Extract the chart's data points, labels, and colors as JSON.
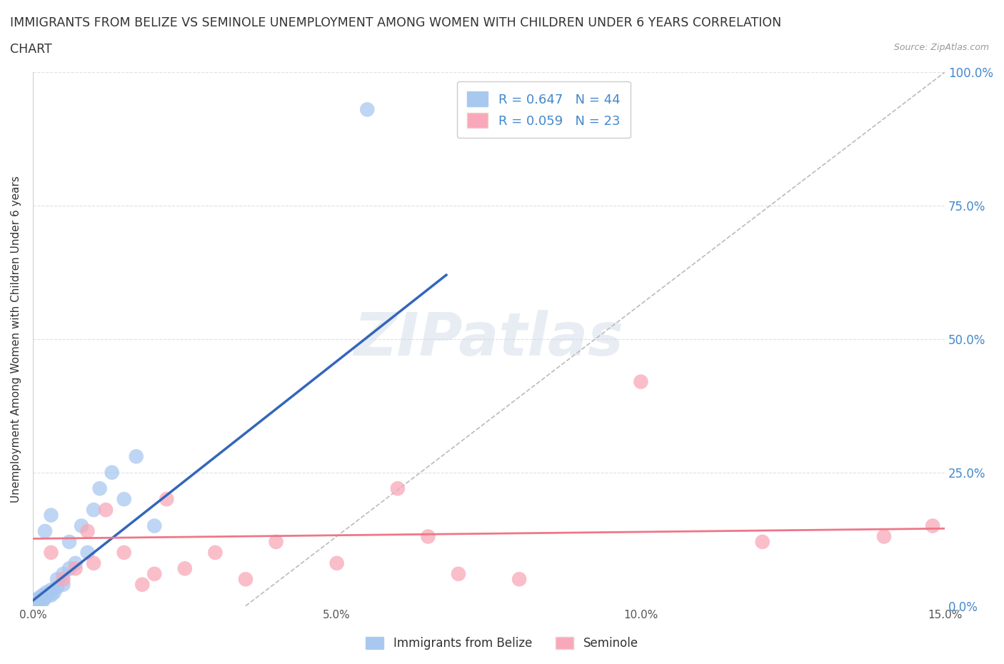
{
  "title_line1": "IMMIGRANTS FROM BELIZE VS SEMINOLE UNEMPLOYMENT AMONG WOMEN WITH CHILDREN UNDER 6 YEARS CORRELATION",
  "title_line2": "CHART",
  "source_text": "Source: ZipAtlas.com",
  "ylabel": "Unemployment Among Women with Children Under 6 years",
  "legend_bottom": [
    "Immigrants from Belize",
    "Seminole"
  ],
  "xlim": [
    0.0,
    0.15
  ],
  "ylim": [
    0.0,
    1.0
  ],
  "xticks": [
    0.0,
    0.05,
    0.1,
    0.15
  ],
  "xtick_labels": [
    "0.0%",
    "5.0%",
    "10.0%",
    "15.0%"
  ],
  "yticks": [
    0.0,
    0.25,
    0.5,
    0.75,
    1.0
  ],
  "ytick_labels": [
    "0.0%",
    "25.0%",
    "50.0%",
    "75.0%",
    "100.0%"
  ],
  "R_belize": 0.647,
  "N_belize": 44,
  "R_seminole": 0.059,
  "N_seminole": 23,
  "color_belize": "#a8c8f0",
  "color_seminole": "#f8a8b8",
  "color_belize_line": "#3366bb",
  "color_seminole_line": "#ee7788",
  "color_right_ytick": "#4488cc",
  "watermark": "ZIPatlas",
  "belize_x": [
    0.0002,
    0.0003,
    0.0004,
    0.0005,
    0.0005,
    0.0006,
    0.0007,
    0.0008,
    0.0008,
    0.0009,
    0.001,
    0.001,
    0.0012,
    0.0013,
    0.0014,
    0.0015,
    0.0016,
    0.0017,
    0.0018,
    0.002,
    0.002,
    0.0022,
    0.0025,
    0.003,
    0.003,
    0.0035,
    0.004,
    0.004,
    0.005,
    0.005,
    0.006,
    0.006,
    0.007,
    0.008,
    0.009,
    0.01,
    0.011,
    0.013,
    0.015,
    0.017,
    0.002,
    0.003,
    0.02,
    0.055
  ],
  "belize_y": [
    0.005,
    0.008,
    0.003,
    0.01,
    0.005,
    0.007,
    0.01,
    0.005,
    0.012,
    0.008,
    0.01,
    0.015,
    0.01,
    0.007,
    0.012,
    0.015,
    0.02,
    0.01,
    0.015,
    0.02,
    0.015,
    0.025,
    0.02,
    0.03,
    0.02,
    0.025,
    0.05,
    0.035,
    0.06,
    0.04,
    0.07,
    0.12,
    0.08,
    0.15,
    0.1,
    0.18,
    0.22,
    0.25,
    0.2,
    0.28,
    0.14,
    0.17,
    0.15,
    0.93
  ],
  "seminole_x": [
    0.003,
    0.005,
    0.007,
    0.009,
    0.01,
    0.012,
    0.015,
    0.018,
    0.02,
    0.022,
    0.025,
    0.03,
    0.035,
    0.04,
    0.05,
    0.06,
    0.065,
    0.07,
    0.08,
    0.1,
    0.12,
    0.14,
    0.148
  ],
  "seminole_y": [
    0.1,
    0.05,
    0.07,
    0.14,
    0.08,
    0.18,
    0.1,
    0.04,
    0.06,
    0.2,
    0.07,
    0.1,
    0.05,
    0.12,
    0.08,
    0.22,
    0.13,
    0.06,
    0.05,
    0.42,
    0.12,
    0.13,
    0.15
  ],
  "belize_line_x": [
    0.0,
    0.068
  ],
  "belize_line_y": [
    0.01,
    0.62
  ],
  "seminole_line_x": [
    0.0,
    0.15
  ],
  "seminole_line_y": [
    0.126,
    0.145
  ],
  "dash_line_x": [
    0.035,
    0.15
  ],
  "dash_line_y": [
    0.0,
    1.0
  ],
  "background_color": "#ffffff",
  "grid_color": "#e0e0e0"
}
